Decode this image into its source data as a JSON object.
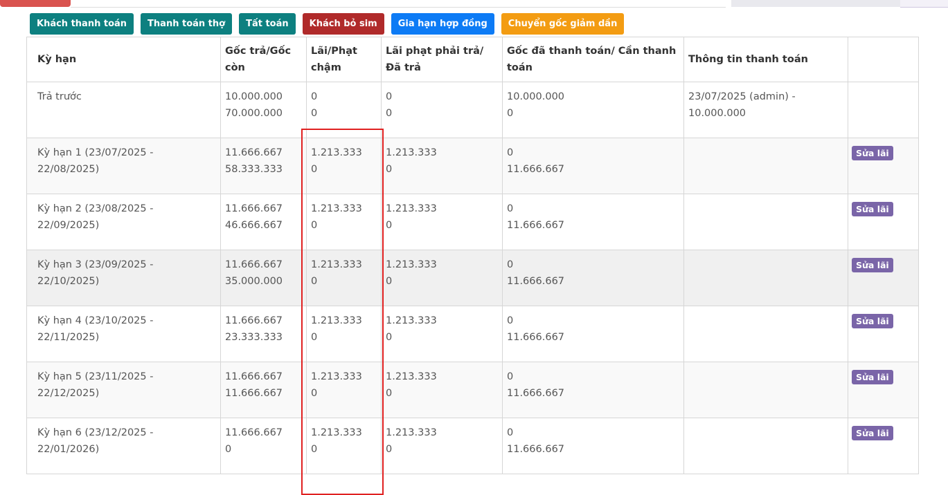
{
  "actions": {
    "customer_payment": "Khách thanh toán",
    "worker_payment": "Thanh toán thợ",
    "settle": "Tất toán",
    "customer_drop_sim": "Khách bỏ sim",
    "extend_contract": "Gia hạn hợp đồng",
    "decreasing_principal": "Chuyển gốc giảm dần"
  },
  "table": {
    "headers": [
      "Kỳ hạn",
      "Gốc trả/Gốc còn",
      "Lãi/Phạt chậm",
      "Lãi phạt phải trả/Đã trả",
      "Gốc đã thanh toán/ Cần thanh toán",
      "Thông tin thanh toán",
      ""
    ],
    "rows": [
      {
        "term": "Trả trước",
        "principal_paid": "10.000.000",
        "principal_remaining": "70.000.000",
        "interest": "0",
        "late_fee": "0",
        "due": "0",
        "paid": "0",
        "principal_done": "10.000.000",
        "principal_need": "0",
        "payment_info": "23/07/2025 (admin) - 10.000.000",
        "action": ""
      },
      {
        "term": "Kỳ hạn 1 (23/07/2025 - 22/08/2025)",
        "principal_paid": "11.666.667",
        "principal_remaining": "58.333.333",
        "interest": "1.213.333",
        "late_fee": "0",
        "due": "1.213.333",
        "paid": "0",
        "principal_done": "0",
        "principal_need": "11.666.667",
        "payment_info": "",
        "action": "Sửa lãi"
      },
      {
        "term": "Kỳ hạn 2 (23/08/2025 - 22/09/2025)",
        "principal_paid": "11.666.667",
        "principal_remaining": "46.666.667",
        "interest": "1.213.333",
        "late_fee": "0",
        "due": "1.213.333",
        "paid": "0",
        "principal_done": "0",
        "principal_need": "11.666.667",
        "payment_info": "",
        "action": "Sửa lãi"
      },
      {
        "term": "Kỳ hạn 3 (23/09/2025 - 22/10/2025)",
        "principal_paid": "11.666.667",
        "principal_remaining": "35.000.000",
        "interest": "1.213.333",
        "late_fee": "0",
        "due": "1.213.333",
        "paid": "0",
        "principal_done": "0",
        "principal_need": "11.666.667",
        "payment_info": "",
        "action": "Sửa lãi"
      },
      {
        "term": "Kỳ hạn 4 (23/10/2025 - 22/11/2025)",
        "principal_paid": "11.666.667",
        "principal_remaining": "23.333.333",
        "interest": "1.213.333",
        "late_fee": "0",
        "due": "1.213.333",
        "paid": "0",
        "principal_done": "0",
        "principal_need": "11.666.667",
        "payment_info": "",
        "action": "Sửa lãi"
      },
      {
        "term": "Kỳ hạn 5 (23/11/2025 - 22/12/2025)",
        "principal_paid": "11.666.667",
        "principal_remaining": "11.666.667",
        "interest": "1.213.333",
        "late_fee": "0",
        "due": "1.213.333",
        "paid": "0",
        "principal_done": "0",
        "principal_need": "11.666.667",
        "payment_info": "",
        "action": "Sửa lãi"
      },
      {
        "term": "Kỳ hạn 6 (23/12/2025 - 22/01/2026)",
        "principal_paid": "11.666.667",
        "principal_remaining": "0",
        "interest": "1.213.333",
        "late_fee": "0",
        "due": "1.213.333",
        "paid": "0",
        "principal_done": "0",
        "principal_need": "11.666.667",
        "payment_info": "",
        "action": "Sửa lãi"
      }
    ]
  },
  "colors": {
    "teal": "#0d8080",
    "darkred": "#b02a2a",
    "blue": "#0d7bf5",
    "orange": "#f39c12",
    "badge": "#7a65a8",
    "highlight_box": "#e02020"
  }
}
